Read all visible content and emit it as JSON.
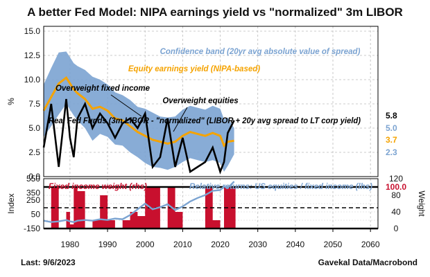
{
  "title": "A better Fed Model: NIPA earnings yield vs \"normalized\" 3m LIBOR",
  "footer": {
    "left": "Last: 9/6/2023",
    "right": "Gavekal Data/Macrobond"
  },
  "colors": {
    "band": "#7ba3d1",
    "equity": "#f5a300",
    "libor": "#000000",
    "weight": "#c8102e",
    "relative": "#7ba3d1"
  },
  "chart_data": [
    {
      "type": "area",
      "ylabel": "%",
      "xlim": [
        1973,
        2062
      ],
      "ylim": [
        0,
        15.5
      ],
      "yticks": [
        "0.0",
        "2.5",
        "5.0",
        "7.5",
        "10.0",
        "12.5",
        "15.0"
      ],
      "xticks": [
        "1980",
        "1990",
        "2000",
        "2010",
        "2020",
        "2030",
        "2040",
        "2050",
        "2060"
      ],
      "grid": true,
      "annotations": [
        "Confidence band (20yr avg absolute value of spread)",
        "Equity earnings yield (NIPA-based)",
        "Overweight fixed income",
        "Overweight equities",
        "Real Fed Funds (3m LIBOR - \"normalized\" (LIBOR + 20y avg spread to LT corp yield)"
      ],
      "right_labels": [
        "5.8",
        "5.0",
        "3.7",
        "2.3"
      ],
      "x": [
        1973,
        1975,
        1977,
        1979,
        1980,
        1981,
        1982,
        1984,
        1986,
        1988,
        1990,
        1992,
        1994,
        1996,
        1998,
        2000,
        2002,
        2004,
        2006,
        2008,
        2010,
        2012,
        2014,
        2016,
        2018,
        2020,
        2021,
        2022,
        2023.7
      ],
      "series": [
        {
          "name": "Equity earnings yield (NIPA-based)",
          "values": [
            6.8,
            8.2,
            9.6,
            10.2,
            9.6,
            9.0,
            8.6,
            8.0,
            7.0,
            7.2,
            6.8,
            6.0,
            5.8,
            5.2,
            4.6,
            4.2,
            3.8,
            3.6,
            3.4,
            3.6,
            4.2,
            4.6,
            4.4,
            4.2,
            4.5,
            4.2,
            3.2,
            3.6,
            3.7
          ]
        },
        {
          "name": "Confidence band upper",
          "values": [
            9.5,
            11.2,
            12.8,
            12.9,
            12.3,
            11.7,
            11.4,
            11.0,
            10.3,
            10.0,
            9.5,
            8.7,
            8.4,
            7.9,
            7.2,
            7.0,
            6.6,
            6.2,
            6.1,
            6.2,
            6.9,
            7.3,
            7.1,
            6.9,
            7.3,
            7.0,
            5.9,
            6.1,
            5.0
          ]
        },
        {
          "name": "Confidence band lower",
          "values": [
            4.1,
            5.2,
            6.4,
            7.5,
            6.9,
            6.3,
            5.8,
            5.0,
            3.7,
            4.4,
            4.1,
            3.3,
            3.2,
            2.5,
            2.0,
            1.4,
            1.0,
            0.9,
            0.7,
            1.0,
            1.5,
            1.9,
            1.7,
            1.5,
            1.7,
            1.4,
            0.5,
            1.1,
            2.3
          ]
        },
        {
          "name": "Real Fed Funds",
          "values": [
            3.0,
            7.5,
            1.0,
            8.0,
            4.0,
            2.0,
            6.0,
            7.5,
            5.0,
            6.5,
            5.5,
            4.0,
            5.5,
            6.0,
            5.0,
            6.5,
            1.0,
            2.0,
            6.0,
            1.0,
            4.0,
            0.5,
            1.0,
            1.5,
            3.0,
            0.5,
            1.5,
            4.5,
            5.8
          ]
        }
      ]
    },
    {
      "type": "area",
      "ylabel_left": "Index",
      "ylabel_right": "Weight",
      "xlim": [
        1973,
        2062
      ],
      "yticks_left": [
        "-150",
        "50",
        "250",
        "350",
        "550"
      ],
      "yticks_right": [
        "0",
        "40",
        "80",
        "120"
      ],
      "ylim_right": [
        0,
        120
      ],
      "ylim_left": [
        -150,
        550
      ],
      "threshold_lines": [
        0,
        100
      ],
      "dashed_line": 50,
      "current_weight_label": "100.0",
      "annotations": [
        "Fixed income weight (rhs)",
        "Relative returns: US equities / fixed income (lhs)"
      ],
      "x": [
        1973,
        1975,
        1977,
        1979,
        1980,
        1981,
        1982,
        1984,
        1986,
        1988,
        1990,
        1992,
        1994,
        1996,
        1998,
        2000,
        2002,
        2004,
        2006,
        2008,
        2010,
        2012,
        2014,
        2016,
        2018,
        2020,
        2021,
        2022,
        2023.7
      ],
      "series": [
        {
          "name": "Fixed income weight (rhs)",
          "values": [
            0,
            100,
            0,
            40,
            10,
            100,
            90,
            0,
            20,
            80,
            20,
            0,
            20,
            40,
            30,
            100,
            100,
            0,
            100,
            40,
            0,
            0,
            0,
            100,
            20,
            0,
            100,
            100,
            100
          ]
        },
        {
          "name": "Relative returns: US equities / fixed income (lhs)",
          "values": [
            -40,
            -60,
            -50,
            -30,
            -50,
            -60,
            -40,
            -30,
            -40,
            -20,
            -30,
            -10,
            -20,
            40,
            120,
            200,
            120,
            150,
            190,
            110,
            160,
            230,
            280,
            320,
            380,
            390,
            440,
            420,
            510
          ]
        }
      ]
    }
  ]
}
